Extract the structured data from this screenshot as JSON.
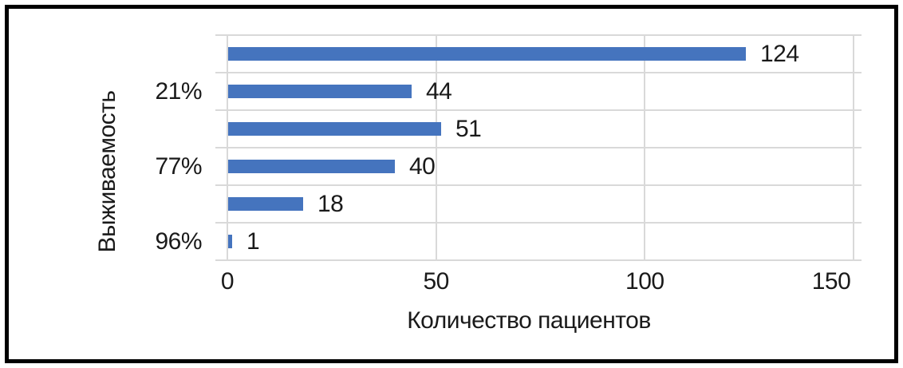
{
  "chart_data": {
    "type": "bar",
    "orientation": "horizontal",
    "title": "",
    "xlabel": "Количество пациентов",
    "ylabel": "Выживаемость",
    "xlim": [
      0,
      150
    ],
    "xticks": [
      0,
      50,
      100,
      150
    ],
    "grid": true,
    "legend": false,
    "groups": [
      {
        "category": "21%",
        "values": [
          124,
          44
        ]
      },
      {
        "category": "77%",
        "values": [
          51,
          40
        ]
      },
      {
        "category": "96%",
        "values": [
          18,
          1
        ]
      }
    ],
    "bars": [
      {
        "value": 124,
        "label": "124",
        "category_label": ""
      },
      {
        "value": 44,
        "label": "44",
        "category_label": "21%"
      },
      {
        "value": 51,
        "label": "51",
        "category_label": ""
      },
      {
        "value": 40,
        "label": "40",
        "category_label": "77%"
      },
      {
        "value": 18,
        "label": "18",
        "category_label": ""
      },
      {
        "value": 1,
        "label": "1",
        "category_label": "96%"
      }
    ],
    "colors": {
      "bar": "#4574BE",
      "gridline": "#D9D9D9",
      "text": "#1A1A1A",
      "frame_border": "#000000",
      "background": "#FFFFFF"
    }
  }
}
